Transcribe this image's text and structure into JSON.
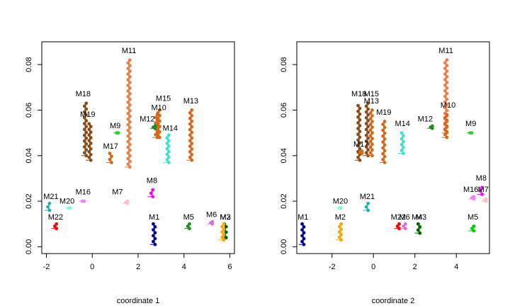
{
  "chart_data": [
    {
      "type": "scatter",
      "title": "",
      "xlabel": "coordinate 1",
      "ylabel": "",
      "xlim": [
        -2.2,
        6.2
      ],
      "ylim": [
        -0.003,
        0.09
      ],
      "xticks": [
        -2,
        0,
        2,
        4,
        6
      ],
      "xtick_labels": [
        "-2",
        "0",
        "2",
        "4",
        "6"
      ],
      "yticks": [
        0.0,
        0.02,
        0.04,
        0.06,
        0.08
      ],
      "ytick_labels": [
        "0.00",
        "0.02",
        "0.04",
        "0.06",
        "0.08"
      ],
      "grid": false,
      "branches": [
        {
          "label": "M11",
          "color": "#e87f50",
          "x": 1.6,
          "y0": 0.035,
          "y1": 0.082,
          "lx": 1.6,
          "ly": 0.085
        },
        {
          "label": "M18",
          "color": "#8b4a16",
          "x": -0.3,
          "y0": 0.04,
          "y1": 0.063,
          "lx": -0.4,
          "ly": 0.066
        },
        {
          "label": "M19",
          "color": "#8b4a16",
          "x": -0.1,
          "y0": 0.038,
          "y1": 0.054,
          "lx": -0.2,
          "ly": 0.057
        },
        {
          "label": "M17",
          "color": "#d2691e",
          "x": 0.8,
          "y0": 0.037,
          "y1": 0.041,
          "lx": 0.8,
          "ly": 0.043
        },
        {
          "label": "M15",
          "color": "#d2691e",
          "x": 2.9,
          "y0": 0.048,
          "y1": 0.06,
          "lx": 3.1,
          "ly": 0.064
        },
        {
          "label": "M10",
          "color": "#d2691e",
          "x": 2.8,
          "y0": 0.048,
          "y1": 0.058,
          "lx": 2.9,
          "ly": 0.06
        },
        {
          "label": "M12",
          "color": "#228b22",
          "x": 2.7,
          "y0": 0.052,
          "y1": 0.053,
          "lx": 2.4,
          "ly": 0.055
        },
        {
          "label": "M9",
          "color": "#32cd32",
          "x": 1.1,
          "y0": 0.05,
          "y1": 0.05,
          "lx": 1.0,
          "ly": 0.052
        },
        {
          "label": "M14",
          "color": "#40e0d0",
          "x": 3.3,
          "y0": 0.037,
          "y1": 0.049,
          "lx": 3.4,
          "ly": 0.051
        },
        {
          "label": "M13",
          "color": "#d2691e",
          "x": 4.3,
          "y0": 0.038,
          "y1": 0.06,
          "lx": 4.3,
          "ly": 0.063
        },
        {
          "label": "M8",
          "color": "#ff00ff",
          "x": 2.6,
          "y0": 0.022,
          "y1": 0.025,
          "lx": 2.6,
          "ly": 0.028
        },
        {
          "label": "M7",
          "color": "#ffc0cb",
          "x": 1.5,
          "y0": 0.019,
          "y1": 0.02,
          "lx": 1.1,
          "ly": 0.023
        },
        {
          "label": "M16",
          "color": "#ee82ee",
          "x": -0.4,
          "y0": 0.02,
          "y1": 0.02,
          "lx": -0.4,
          "ly": 0.023
        },
        {
          "label": "M21",
          "color": "#20b2aa",
          "x": -1.9,
          "y0": 0.016,
          "y1": 0.019,
          "lx": -1.8,
          "ly": 0.021
        },
        {
          "label": "M20",
          "color": "#7fffd4",
          "x": -1.0,
          "y0": 0.017,
          "y1": 0.017,
          "lx": -1.1,
          "ly": 0.019
        },
        {
          "label": "M22",
          "color": "#ff0000",
          "x": -1.6,
          "y0": 0.008,
          "y1": 0.01,
          "lx": -1.6,
          "ly": 0.012
        },
        {
          "label": "M1",
          "color": "#00008b",
          "x": 2.7,
          "y0": 0.001,
          "y1": 0.01,
          "lx": 2.7,
          "ly": 0.012
        },
        {
          "label": "M5",
          "color": "#228b22",
          "x": 4.2,
          "y0": 0.008,
          "y1": 0.01,
          "lx": 4.2,
          "ly": 0.012
        },
        {
          "label": "M6",
          "color": "#da70d6",
          "x": 5.2,
          "y0": 0.01,
          "y1": 0.011,
          "lx": 5.2,
          "ly": 0.013
        },
        {
          "label": "M3",
          "color": "#006400",
          "x": 5.8,
          "y0": 0.004,
          "y1": 0.01,
          "lx": 5.8,
          "ly": 0.012
        },
        {
          "label": "M2",
          "color": "#ffa500",
          "x": 5.7,
          "y0": 0.003,
          "y1": 0.01,
          "lx": 5.8,
          "ly": 0.012
        }
      ]
    },
    {
      "type": "scatter",
      "title": "",
      "xlabel": "coordinate 2",
      "ylabel": "",
      "xlim": [
        -3.7,
        5.6
      ],
      "ylim": [
        -0.003,
        0.09
      ],
      "xticks": [
        -2,
        0,
        2,
        4
      ],
      "xtick_labels": [
        "-2",
        "0",
        "2",
        "4"
      ],
      "yticks": [
        0.0,
        0.02,
        0.04,
        0.06,
        0.08
      ],
      "ytick_labels": [
        "0.00",
        "0.02",
        "0.04",
        "0.06",
        "0.08"
      ],
      "grid": false,
      "branches": [
        {
          "label": "M11",
          "color": "#e87f50",
          "x": 3.5,
          "y0": 0.05,
          "y1": 0.082,
          "lx": 3.5,
          "ly": 0.085
        },
        {
          "label": "M18",
          "color": "#8b4a16",
          "x": -0.7,
          "y0": 0.038,
          "y1": 0.062,
          "lx": -0.7,
          "ly": 0.066
        },
        {
          "label": "M15",
          "color": "#8b4a16",
          "x": -0.3,
          "y0": 0.04,
          "y1": 0.063,
          "lx": -0.1,
          "ly": 0.066
        },
        {
          "label": "M13",
          "color": "#d2691e",
          "x": -0.1,
          "y0": 0.04,
          "y1": 0.06,
          "lx": -0.1,
          "ly": 0.063
        },
        {
          "label": "M19",
          "color": "#d2691e",
          "x": 0.5,
          "y0": 0.037,
          "y1": 0.055,
          "lx": 0.5,
          "ly": 0.058
        },
        {
          "label": "M14",
          "color": "#40e0d0",
          "x": 1.4,
          "y0": 0.041,
          "y1": 0.05,
          "lx": 1.4,
          "ly": 0.053
        },
        {
          "label": "M12",
          "color": "#228b22",
          "x": 2.8,
          "y0": 0.052,
          "y1": 0.053,
          "lx": 2.5,
          "ly": 0.055
        },
        {
          "label": "M10",
          "color": "#d2691e",
          "x": 3.5,
          "y0": 0.048,
          "y1": 0.058,
          "lx": 3.6,
          "ly": 0.061
        },
        {
          "label": "M9",
          "color": "#32cd32",
          "x": 4.7,
          "y0": 0.05,
          "y1": 0.05,
          "lx": 4.7,
          "ly": 0.053
        },
        {
          "label": "M17",
          "color": "#d2691e",
          "x": -0.6,
          "y0": 0.041,
          "y1": 0.042,
          "lx": -0.6,
          "ly": 0.044
        },
        {
          "label": "M8",
          "color": "#ff00ff",
          "x": 5.2,
          "y0": 0.023,
          "y1": 0.026,
          "lx": 5.2,
          "ly": 0.029
        },
        {
          "label": "M16",
          "color": "#ee82ee",
          "x": 4.8,
          "y0": 0.021,
          "y1": 0.022,
          "lx": 4.7,
          "ly": 0.024
        },
        {
          "label": "M7",
          "color": "#ffc0cb",
          "x": 5.4,
          "y0": 0.02,
          "y1": 0.021,
          "lx": 5.3,
          "ly": 0.024
        },
        {
          "label": "M20",
          "color": "#7fffd4",
          "x": -1.6,
          "y0": 0.017,
          "y1": 0.017,
          "lx": -1.6,
          "ly": 0.019
        },
        {
          "label": "M21",
          "color": "#20b2aa",
          "x": -0.3,
          "y0": 0.016,
          "y1": 0.019,
          "lx": -0.3,
          "ly": 0.021
        },
        {
          "label": "M1",
          "color": "#00008b",
          "x": -3.4,
          "y0": 0.001,
          "y1": 0.01,
          "lx": -3.4,
          "ly": 0.012
        },
        {
          "label": "M2",
          "color": "#ffa500",
          "x": -1.6,
          "y0": 0.003,
          "y1": 0.01,
          "lx": -1.6,
          "ly": 0.012
        },
        {
          "label": "M22",
          "color": "#ff0000",
          "x": 1.2,
          "y0": 0.008,
          "y1": 0.01,
          "lx": 1.2,
          "ly": 0.012
        },
        {
          "label": "M6",
          "color": "#da70d6",
          "x": 1.5,
          "y0": 0.008,
          "y1": 0.01,
          "lx": 1.5,
          "ly": 0.012
        },
        {
          "label": "M4",
          "color": "#2e8b57",
          "x": 2.2,
          "y0": 0.006,
          "y1": 0.01,
          "lx": 2.1,
          "ly": 0.012
        },
        {
          "label": "M3",
          "color": "#006400",
          "x": 2.2,
          "y0": 0.006,
          "y1": 0.01,
          "lx": 2.3,
          "ly": 0.012
        },
        {
          "label": "M5",
          "color": "#00cc00",
          "x": 4.8,
          "y0": 0.007,
          "y1": 0.009,
          "lx": 4.8,
          "ly": 0.012
        }
      ]
    }
  ]
}
